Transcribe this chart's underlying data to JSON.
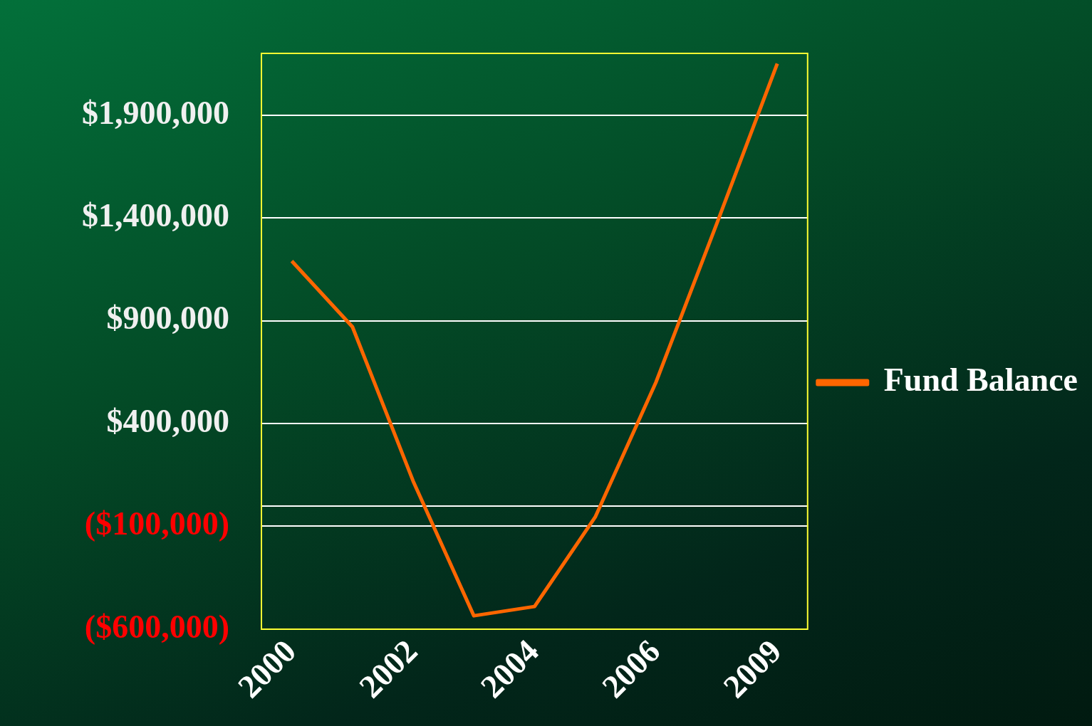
{
  "chart_data": {
    "type": "line",
    "categories": [
      "2000",
      null,
      "2002",
      null,
      "2004",
      null,
      "2006",
      null,
      "2009"
    ],
    "series": [
      {
        "name": "Fund Balance",
        "color": "#ff6600",
        "values": [
          1190000,
          870000,
          120000,
          -535000,
          -490000,
          -55000,
          600000,
          1370000,
          2150000
        ]
      }
    ],
    "ylim": [
      -600000,
      2200000
    ],
    "yticks": [
      {
        "value": -600000,
        "label": "($600,000)"
      },
      {
        "value": -100000,
        "label": "($100,000)"
      },
      {
        "value": 0,
        "label": null
      },
      {
        "value": 400000,
        "label": "$400,000"
      },
      {
        "value": 900000,
        "label": "$900,000"
      },
      {
        "value": 1400000,
        "label": "$1,400,000"
      },
      {
        "value": 1900000,
        "label": "$1,900,000"
      }
    ],
    "grid": "y",
    "legend": "right",
    "marker": "none",
    "line_style": "solid"
  }
}
